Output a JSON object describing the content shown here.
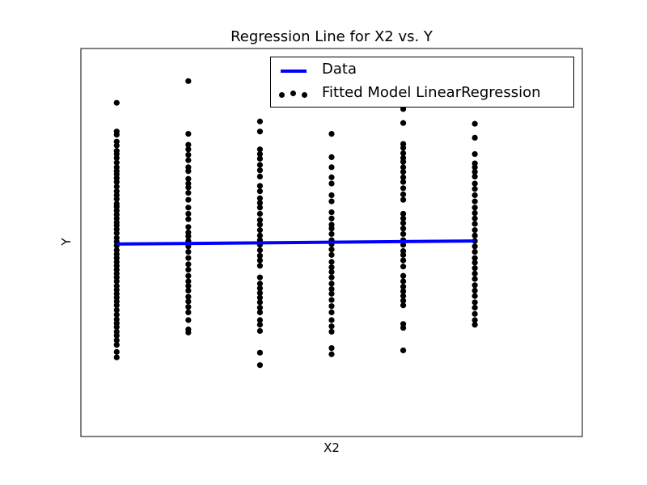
{
  "chart_data": {
    "type": "scatter",
    "title": "Regression Line for X2 vs. Y",
    "xlabel": "X2",
    "ylabel": "Y",
    "xlim": [
      0.5,
      7.5
    ],
    "ylim": [
      -25,
      25
    ],
    "xticks": [],
    "yticks": [],
    "grid": false,
    "legend_position": "top-right",
    "legend": [
      {
        "label": "Data",
        "marker": "line",
        "color": "#0000ff"
      },
      {
        "label": "Fitted Model LinearRegression",
        "marker": "dots",
        "color": "#000000"
      }
    ],
    "series": [
      {
        "name": "Data",
        "kind": "line",
        "color": "#0000ff",
        "x": [
          1,
          6
        ],
        "y": [
          -0.2,
          0.2
        ]
      },
      {
        "name": "Fitted Model LinearRegression",
        "kind": "scatter",
        "color": "#000000",
        "groups": [
          {
            "x": 1,
            "y": [
              18.0,
              14.3,
              13.9,
              13.0,
              12.5,
              11.8,
              11.4,
              10.9,
              10.3,
              9.7,
              9.2,
              8.8,
              8.3,
              7.8,
              7.2,
              6.6,
              6.1,
              5.6,
              5.0,
              4.6,
              4.1,
              3.6,
              3.1,
              2.6,
              2.2,
              1.7,
              1.2,
              0.6,
              0.1,
              -0.4,
              -1.0,
              -1.5,
              -2.0,
              -2.5,
              -3.0,
              -3.5,
              -4.0,
              -4.5,
              -5.0,
              -5.6,
              -6.1,
              -6.6,
              -7.1,
              -7.6,
              -8.1,
              -8.7,
              -9.3,
              -9.9,
              -10.4,
              -10.9,
              -11.5,
              -12.0,
              -12.6,
              -13.2,
              -14.1,
              -14.8
            ]
          },
          {
            "x": 2,
            "y": [
              20.8,
              14.0,
              12.6,
              12.0,
              11.3,
              10.6,
              9.7,
              9.2,
              8.2,
              7.6,
              7.1,
              6.4,
              5.5,
              4.5,
              3.7,
              3.0,
              2.0,
              1.3,
              0.8,
              0.2,
              -0.5,
              -1.2,
              -2.0,
              -2.8,
              -3.5,
              -4.3,
              -5.0,
              -5.6,
              -6.2,
              -7.0,
              -7.6,
              -8.3,
              -9.0,
              -10.0,
              -11.2,
              -11.6
            ]
          },
          {
            "x": 3,
            "y": [
              15.6,
              14.3,
              12.0,
              11.4,
              10.8,
              10.0,
              9.3,
              8.5,
              7.3,
              6.6,
              5.7,
              5.1,
              4.5,
              3.7,
              2.9,
              2.3,
              1.6,
              0.9,
              0.3,
              -0.3,
              -1.0,
              -1.7,
              -2.3,
              -3.0,
              -4.5,
              -5.3,
              -5.9,
              -6.5,
              -7.1,
              -7.7,
              -8.4,
              -9.0,
              -10.0,
              -10.6,
              -11.4,
              -14.2,
              -15.8
            ]
          },
          {
            "x": 4,
            "y": [
              14.0,
              11.0,
              9.7,
              8.4,
              7.6,
              6.1,
              5.3,
              3.9,
              3.1,
              2.3,
              1.8,
              1.1,
              0.3,
              -0.2,
              -0.9,
              -1.6,
              -2.5,
              -3.2,
              -3.8,
              -4.5,
              -5.3,
              -6.0,
              -6.6,
              -7.4,
              -8.2,
              -9.0,
              -10.0,
              -10.8,
              -11.5,
              -13.6,
              -14.4
            ]
          },
          {
            "x": 5,
            "y": [
              17.2,
              15.4,
              12.7,
              12.2,
              11.5,
              10.9,
              10.4,
              9.7,
              9.1,
              8.4,
              7.8,
              7.0,
              6.2,
              5.5,
              3.7,
              3.1,
              2.5,
              1.8,
              1.1,
              0.3,
              -0.3,
              -1.1,
              -1.6,
              -2.3,
              -3.1,
              -4.3,
              -5.0,
              -5.7,
              -6.3,
              -6.9,
              -7.5,
              -8.1,
              -10.5,
              -11.0,
              -13.9
            ]
          },
          {
            "x": 6,
            "y": [
              15.3,
              13.5,
              11.4,
              10.2,
              9.7,
              9.1,
              8.5,
              7.6,
              6.9,
              6.1,
              5.3,
              4.5,
              3.8,
              3.1,
              2.4,
              1.6,
              0.9,
              0.2,
              -0.5,
              -1.2,
              -2.0,
              -2.6,
              -3.3,
              -4.0,
              -4.7,
              -5.5,
              -6.2,
              -6.9,
              -7.7,
              -8.4,
              -9.2,
              -10.0,
              -10.6
            ]
          }
        ]
      }
    ]
  }
}
